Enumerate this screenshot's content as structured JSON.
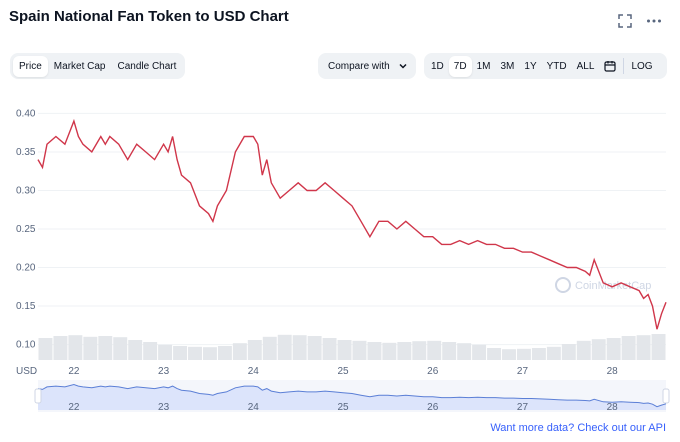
{
  "header": {
    "title": "Spain National Fan Token to USD Chart"
  },
  "tabs": [
    {
      "label": "Price",
      "active": true
    },
    {
      "label": "Market Cap",
      "active": false
    },
    {
      "label": "Candle Chart",
      "active": false
    }
  ],
  "compare": {
    "label": "Compare with"
  },
  "ranges": [
    {
      "label": "1D",
      "active": false
    },
    {
      "label": "7D",
      "active": true
    },
    {
      "label": "1M",
      "active": false
    },
    {
      "label": "3M",
      "active": false
    },
    {
      "label": "1Y",
      "active": false
    },
    {
      "label": "YTD",
      "active": false
    },
    {
      "label": "ALL",
      "active": false
    }
  ],
  "log_label": "LOG",
  "watermark": "CoinMarketCap",
  "footer": {
    "api_link": "Want more data? Check out our API"
  },
  "colors": {
    "line": "#d0364a",
    "volume": "#e3e6ea",
    "navigator_fill": "#dce4fb",
    "navigator_line": "#5b7fd6",
    "link": "#3861fb"
  },
  "chart_data": {
    "type": "line",
    "currency_label": "USD",
    "ylim": [
      0.08,
      0.42
    ],
    "y_ticks": [
      "0.40",
      "0.35",
      "0.30",
      "0.25",
      "0.20",
      "0.15",
      "0.10"
    ],
    "x_ticks": [
      "22",
      "23",
      "24",
      "25",
      "26",
      "27",
      "28"
    ],
    "x_start": 21.6,
    "x_end": 28.6,
    "series": [
      {
        "x": [
          21.6,
          21.65,
          21.7,
          21.8,
          21.9,
          22.0,
          22.05,
          22.1,
          22.2,
          22.3,
          22.35,
          22.4,
          22.5,
          22.6,
          22.7,
          22.8,
          22.9,
          23.0,
          23.05,
          23.1,
          23.15,
          23.2,
          23.3,
          23.4,
          23.5,
          23.55,
          23.6,
          23.7,
          23.8,
          23.9,
          24.0,
          24.05,
          24.1,
          24.15,
          24.2,
          24.3,
          24.4,
          24.5,
          24.6,
          24.7,
          24.8,
          24.9,
          25.0,
          25.1,
          25.2,
          25.3,
          25.35,
          25.4,
          25.5,
          25.6,
          25.7,
          25.8,
          25.9,
          26.0,
          26.1,
          26.2,
          26.3,
          26.4,
          26.5,
          26.6,
          26.7,
          26.8,
          26.9,
          27.0,
          27.1,
          27.2,
          27.3,
          27.4,
          27.5,
          27.6,
          27.7,
          27.75,
          27.8,
          27.9,
          28.0,
          28.1,
          28.2,
          28.3,
          28.35,
          28.4,
          28.45,
          28.5,
          28.55,
          28.6
        ],
        "y": [
          0.34,
          0.33,
          0.36,
          0.37,
          0.36,
          0.39,
          0.37,
          0.36,
          0.35,
          0.37,
          0.36,
          0.37,
          0.36,
          0.34,
          0.36,
          0.35,
          0.34,
          0.36,
          0.35,
          0.37,
          0.34,
          0.32,
          0.31,
          0.28,
          0.27,
          0.26,
          0.28,
          0.3,
          0.35,
          0.37,
          0.37,
          0.36,
          0.32,
          0.34,
          0.31,
          0.29,
          0.3,
          0.31,
          0.3,
          0.3,
          0.31,
          0.3,
          0.29,
          0.28,
          0.26,
          0.24,
          0.25,
          0.26,
          0.26,
          0.25,
          0.26,
          0.25,
          0.24,
          0.24,
          0.23,
          0.23,
          0.235,
          0.23,
          0.235,
          0.23,
          0.23,
          0.225,
          0.225,
          0.22,
          0.22,
          0.215,
          0.21,
          0.205,
          0.2,
          0.2,
          0.195,
          0.19,
          0.21,
          0.18,
          0.175,
          0.18,
          0.175,
          0.17,
          0.16,
          0.165,
          0.15,
          0.12,
          0.14,
          0.155
        ]
      }
    ],
    "volume": [
      0.55,
      0.6,
      0.62,
      0.58,
      0.6,
      0.57,
      0.5,
      0.45,
      0.38,
      0.35,
      0.33,
      0.32,
      0.35,
      0.42,
      0.5,
      0.58,
      0.63,
      0.62,
      0.6,
      0.55,
      0.5,
      0.48,
      0.45,
      0.43,
      0.45,
      0.47,
      0.48,
      0.45,
      0.42,
      0.38,
      0.3,
      0.27,
      0.28,
      0.3,
      0.33,
      0.4,
      0.48,
      0.52,
      0.55,
      0.6,
      0.62,
      0.65
    ]
  }
}
